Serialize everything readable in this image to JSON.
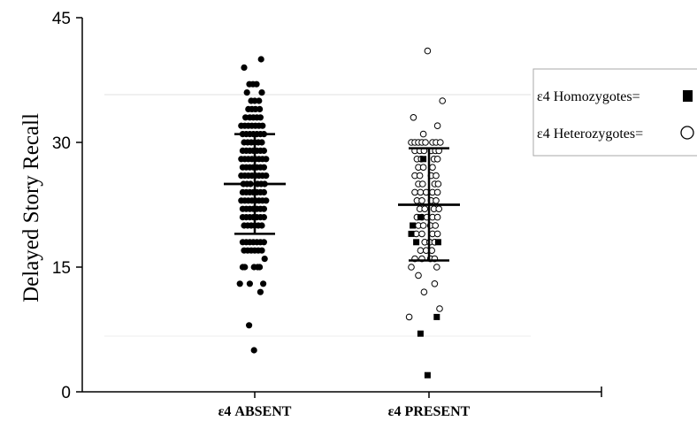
{
  "chart_data": {
    "type": "scatter",
    "ylabel": "Delayed Story Recall",
    "xlabel": "",
    "ylim": [
      0,
      45
    ],
    "y_ticks": [
      "0",
      "15",
      "30",
      "45"
    ],
    "categories": [
      "ε4 ABSENT",
      "ε4 PRESENT"
    ],
    "legend": {
      "placement": "right",
      "entries": [
        {
          "label": "ε4 Homozygotes=",
          "marker": "filled-square"
        },
        {
          "label": "ε4 Heterozygotes=",
          "marker": "open-circle"
        }
      ]
    },
    "groups": [
      {
        "category": "ε4 ABSENT",
        "marker": "filled-circle",
        "mean": 25,
        "sd_upper": 31,
        "sd_lower": 19,
        "points": [
          [
            -0.3,
            39
          ],
          [
            0.18,
            40
          ],
          [
            -0.15,
            37
          ],
          [
            -0.05,
            37
          ],
          [
            0.05,
            37
          ],
          [
            -0.22,
            36
          ],
          [
            0.2,
            36
          ],
          [
            -0.1,
            35
          ],
          [
            0.0,
            35
          ],
          [
            0.12,
            35
          ],
          [
            -0.18,
            34
          ],
          [
            -0.08,
            34
          ],
          [
            0.02,
            34
          ],
          [
            0.14,
            34
          ],
          [
            -0.26,
            33
          ],
          [
            -0.14,
            33
          ],
          [
            -0.04,
            33
          ],
          [
            0.06,
            33
          ],
          [
            0.16,
            33
          ],
          [
            -0.38,
            32
          ],
          [
            -0.28,
            32
          ],
          [
            -0.18,
            32
          ],
          [
            -0.08,
            32
          ],
          [
            0.02,
            32
          ],
          [
            0.12,
            32
          ],
          [
            0.22,
            32
          ],
          [
            -0.34,
            31
          ],
          [
            -0.24,
            31
          ],
          [
            -0.14,
            31
          ],
          [
            -0.04,
            31
          ],
          [
            0.06,
            31
          ],
          [
            0.16,
            31
          ],
          [
            0.26,
            31
          ],
          [
            -0.3,
            30
          ],
          [
            -0.2,
            30
          ],
          [
            -0.1,
            30
          ],
          [
            0.0,
            30
          ],
          [
            0.1,
            30
          ],
          [
            0.2,
            30
          ],
          [
            -0.34,
            29
          ],
          [
            -0.24,
            29
          ],
          [
            -0.14,
            29
          ],
          [
            -0.04,
            29
          ],
          [
            0.06,
            29
          ],
          [
            0.16,
            29
          ],
          [
            0.26,
            29
          ],
          [
            -0.38,
            28
          ],
          [
            -0.28,
            28
          ],
          [
            -0.18,
            28
          ],
          [
            -0.08,
            28
          ],
          [
            0.02,
            28
          ],
          [
            0.12,
            28
          ],
          [
            0.22,
            28
          ],
          [
            0.32,
            28
          ],
          [
            -0.34,
            27
          ],
          [
            -0.24,
            27
          ],
          [
            -0.14,
            27
          ],
          [
            -0.04,
            27
          ],
          [
            0.06,
            27
          ],
          [
            0.16,
            27
          ],
          [
            0.26,
            27
          ],
          [
            -0.38,
            26
          ],
          [
            -0.28,
            26
          ],
          [
            -0.18,
            26
          ],
          [
            -0.08,
            26
          ],
          [
            0.02,
            26
          ],
          [
            0.12,
            26
          ],
          [
            0.22,
            26
          ],
          [
            0.32,
            26
          ],
          [
            -0.32,
            25
          ],
          [
            -0.22,
            25
          ],
          [
            -0.12,
            25
          ],
          [
            0.08,
            25
          ],
          [
            0.18,
            25
          ],
          [
            0.28,
            25
          ],
          [
            -0.34,
            24
          ],
          [
            -0.24,
            24
          ],
          [
            -0.14,
            24
          ],
          [
            -0.04,
            24
          ],
          [
            0.06,
            24
          ],
          [
            0.16,
            24
          ],
          [
            0.26,
            24
          ],
          [
            -0.38,
            23
          ],
          [
            -0.28,
            23
          ],
          [
            -0.18,
            23
          ],
          [
            -0.08,
            23
          ],
          [
            0.02,
            23
          ],
          [
            0.12,
            23
          ],
          [
            0.22,
            23
          ],
          [
            0.32,
            23
          ],
          [
            -0.34,
            22
          ],
          [
            -0.24,
            22
          ],
          [
            -0.14,
            22
          ],
          [
            -0.04,
            22
          ],
          [
            0.06,
            22
          ],
          [
            0.16,
            22
          ],
          [
            0.26,
            22
          ],
          [
            -0.34,
            21
          ],
          [
            -0.24,
            21
          ],
          [
            -0.14,
            21
          ],
          [
            -0.04,
            21
          ],
          [
            0.06,
            21
          ],
          [
            0.16,
            21
          ],
          [
            0.26,
            21
          ],
          [
            -0.3,
            20
          ],
          [
            -0.2,
            20
          ],
          [
            -0.1,
            20
          ],
          [
            0.0,
            20
          ],
          [
            0.1,
            20
          ],
          [
            0.2,
            20
          ],
          [
            -0.34,
            18
          ],
          [
            -0.24,
            18
          ],
          [
            -0.14,
            18
          ],
          [
            -0.04,
            18
          ],
          [
            0.06,
            18
          ],
          [
            0.16,
            18
          ],
          [
            0.26,
            18
          ],
          [
            -0.3,
            17
          ],
          [
            -0.2,
            17
          ],
          [
            -0.1,
            17
          ],
          [
            0.0,
            17
          ],
          [
            0.1,
            17
          ],
          [
            0.2,
            17
          ],
          [
            0.28,
            16
          ],
          [
            -0.34,
            15
          ],
          [
            -0.28,
            15
          ],
          [
            -0.02,
            15
          ],
          [
            0.08,
            15
          ],
          [
            0.14,
            15
          ],
          [
            -0.42,
            13
          ],
          [
            -0.14,
            13
          ],
          [
            0.24,
            13
          ],
          [
            0.16,
            12
          ],
          [
            -0.16,
            8
          ],
          [
            -0.02,
            5
          ]
        ]
      },
      {
        "category": "ε4 PRESENT",
        "marker": "open-circle",
        "mean": 22.5,
        "sd_upper": 29.3,
        "sd_lower": 15.8,
        "points": [
          [
            -0.04,
            41
          ],
          [
            0.38,
            35
          ],
          [
            -0.44,
            33
          ],
          [
            0.24,
            32
          ],
          [
            -0.16,
            31
          ],
          [
            -0.5,
            30
          ],
          [
            -0.4,
            30
          ],
          [
            -0.3,
            30
          ],
          [
            -0.2,
            30
          ],
          [
            -0.1,
            30
          ],
          [
            0.1,
            30
          ],
          [
            0.2,
            30
          ],
          [
            0.32,
            30
          ],
          [
            -0.4,
            29
          ],
          [
            -0.26,
            29
          ],
          [
            -0.14,
            29
          ],
          [
            0.06,
            29
          ],
          [
            0.18,
            29
          ],
          [
            0.28,
            29
          ],
          [
            -0.34,
            28
          ],
          [
            -0.22,
            28
          ],
          [
            0.14,
            28
          ],
          [
            0.24,
            28
          ],
          [
            -0.3,
            27
          ],
          [
            -0.16,
            27
          ],
          [
            0.1,
            27
          ],
          [
            -0.4,
            26
          ],
          [
            -0.26,
            26
          ],
          [
            0.06,
            26
          ],
          [
            0.2,
            26
          ],
          [
            -0.3,
            25
          ],
          [
            -0.18,
            25
          ],
          [
            0.16,
            25
          ],
          [
            0.26,
            25
          ],
          [
            -0.4,
            24
          ],
          [
            -0.24,
            24
          ],
          [
            -0.08,
            24
          ],
          [
            0.1,
            24
          ],
          [
            0.24,
            24
          ],
          [
            -0.34,
            23
          ],
          [
            -0.2,
            23
          ],
          [
            0.06,
            23
          ],
          [
            0.2,
            23
          ],
          [
            -0.26,
            22
          ],
          [
            -0.12,
            22
          ],
          [
            0.14,
            22
          ],
          [
            0.28,
            22
          ],
          [
            -0.34,
            21
          ],
          [
            -0.2,
            21
          ],
          [
            -0.06,
            21
          ],
          [
            0.1,
            21
          ],
          [
            0.24,
            21
          ],
          [
            -0.3,
            20
          ],
          [
            -0.16,
            20
          ],
          [
            0.04,
            20
          ],
          [
            0.18,
            20
          ],
          [
            -0.36,
            19
          ],
          [
            -0.2,
            19
          ],
          [
            0.1,
            19
          ],
          [
            0.24,
            19
          ],
          [
            -0.12,
            18
          ],
          [
            0.02,
            18
          ],
          [
            0.16,
            18
          ],
          [
            -0.24,
            17
          ],
          [
            -0.08,
            17
          ],
          [
            0.08,
            17
          ],
          [
            -0.4,
            16
          ],
          [
            -0.2,
            16
          ],
          [
            0.04,
            16
          ],
          [
            0.16,
            16
          ],
          [
            -0.5,
            15
          ],
          [
            0.22,
            15
          ],
          [
            -0.3,
            14
          ],
          [
            0.16,
            13
          ],
          [
            -0.14,
            12
          ],
          [
            0.3,
            10
          ],
          [
            -0.56,
            9
          ]
        ],
        "homozygote_points": [
          [
            -0.16,
            28
          ],
          [
            -0.24,
            21
          ],
          [
            -0.46,
            20
          ],
          [
            -0.5,
            19
          ],
          [
            -0.36,
            18
          ],
          [
            0.26,
            18
          ],
          [
            0.22,
            9
          ],
          [
            -0.24,
            7
          ],
          [
            -0.04,
            2
          ]
        ]
      }
    ]
  }
}
